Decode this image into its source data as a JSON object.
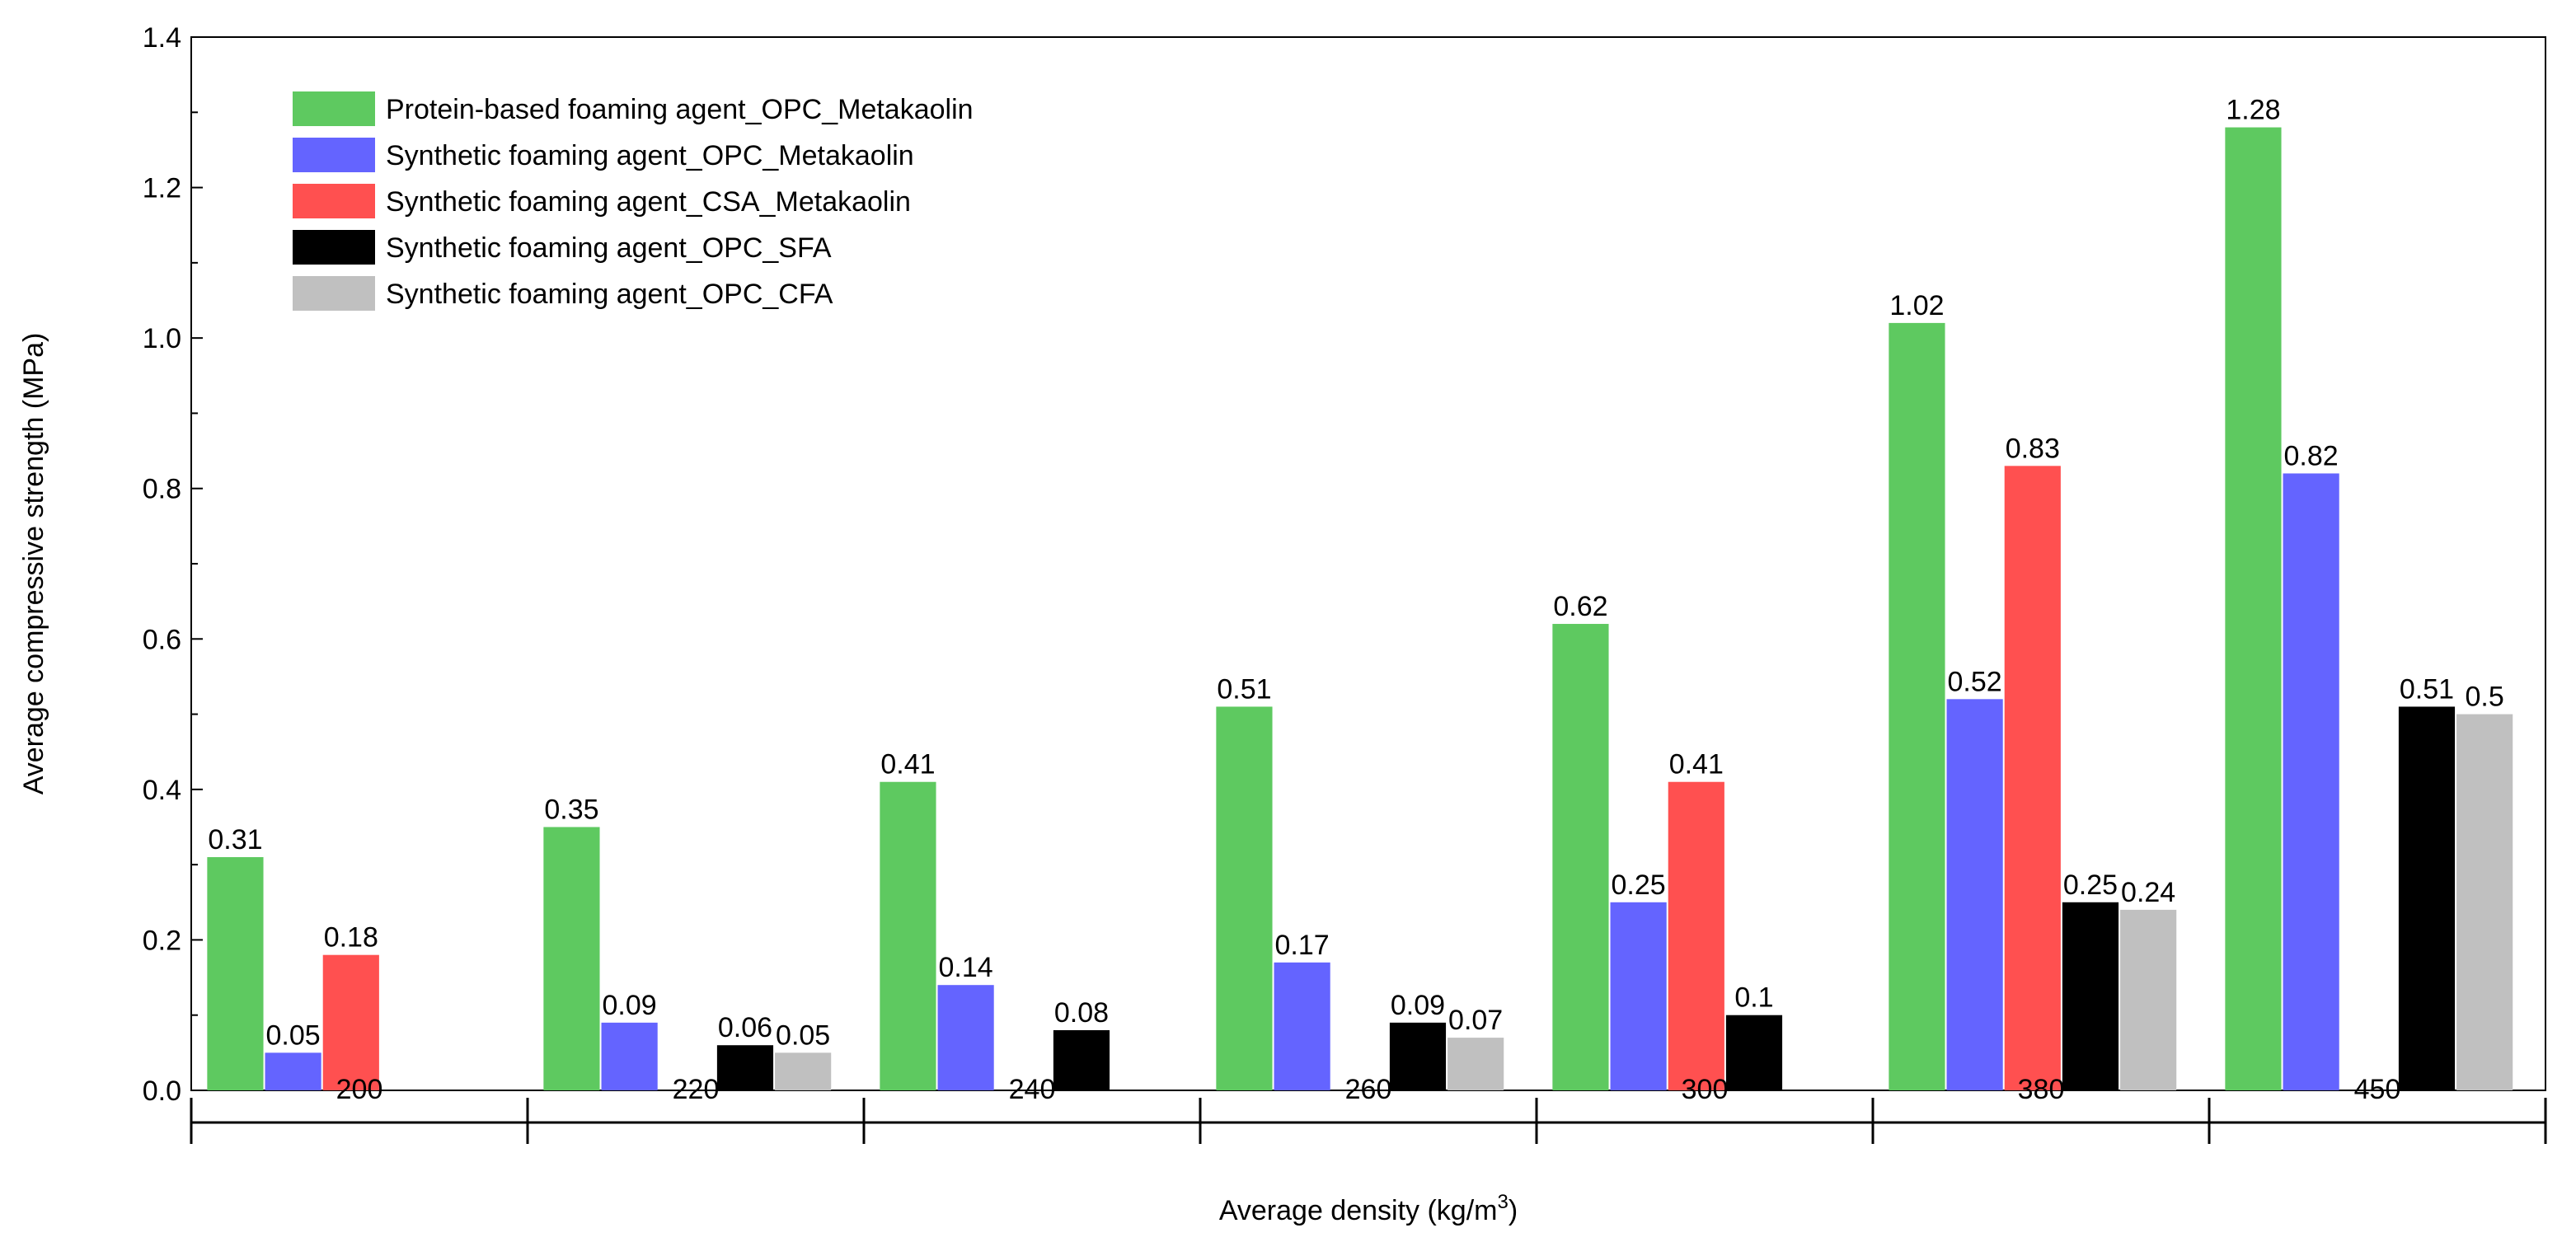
{
  "chart_data": {
    "type": "bar",
    "title": "",
    "xlabel": "Average density (kg/m",
    "xlabel_sup": "3",
    "xlabel_close": ")",
    "ylabel": "Average compressive strength (MPa)",
    "ylim": [
      0,
      1.4
    ],
    "yticks": [
      "0.0",
      "0.2",
      "0.4",
      "0.6",
      "0.8",
      "1.0",
      "1.2",
      "1.4"
    ],
    "ytick_values": [
      0,
      0.2,
      0.4,
      0.6,
      0.8,
      1.0,
      1.2,
      1.4
    ],
    "categories": [
      "200",
      "220",
      "240",
      "260",
      "300",
      "380",
      "450"
    ],
    "legend_position": "top-left",
    "series": [
      {
        "name": "Protein-based foaming agent_OPC_Metakaolin",
        "color": "#5ec960",
        "values": [
          0.31,
          0.35,
          0.41,
          0.51,
          0.62,
          1.02,
          1.28
        ],
        "labels": [
          "0.31",
          "0.35",
          "0.41",
          "0.51",
          "0.62",
          "1.02",
          "1.28"
        ]
      },
      {
        "name": "Synthetic foaming agent_OPC_Metakaolin",
        "color": "#6464ff",
        "values": [
          0.05,
          0.09,
          0.14,
          0.17,
          0.25,
          0.52,
          0.82
        ],
        "labels": [
          "0.05",
          "0.09",
          "0.14",
          "0.17",
          "0.25",
          "0.52",
          "0.82"
        ]
      },
      {
        "name": "Synthetic foaming agent_CSA_Metakaolin",
        "color": "#ff5050",
        "values": [
          0.18,
          null,
          null,
          null,
          0.41,
          0.83,
          null
        ],
        "labels": [
          "0.18",
          null,
          null,
          null,
          "0.41",
          "0.83",
          null
        ]
      },
      {
        "name": "Synthetic foaming agent_OPC_SFA",
        "color": "#000000",
        "values": [
          null,
          0.06,
          0.08,
          0.09,
          0.1,
          0.25,
          0.51
        ],
        "labels": [
          null,
          "0.06",
          "0.08",
          "0.09",
          "0.1",
          "0.25",
          "0.51"
        ]
      },
      {
        "name": "Synthetic foaming agent_OPC_CFA",
        "color": "#c0c0c0",
        "values": [
          null,
          0.05,
          null,
          0.07,
          null,
          0.24,
          0.5
        ],
        "labels": [
          null,
          "0.05",
          null,
          "0.07",
          null,
          "0.24",
          "0.5"
        ]
      }
    ]
  }
}
